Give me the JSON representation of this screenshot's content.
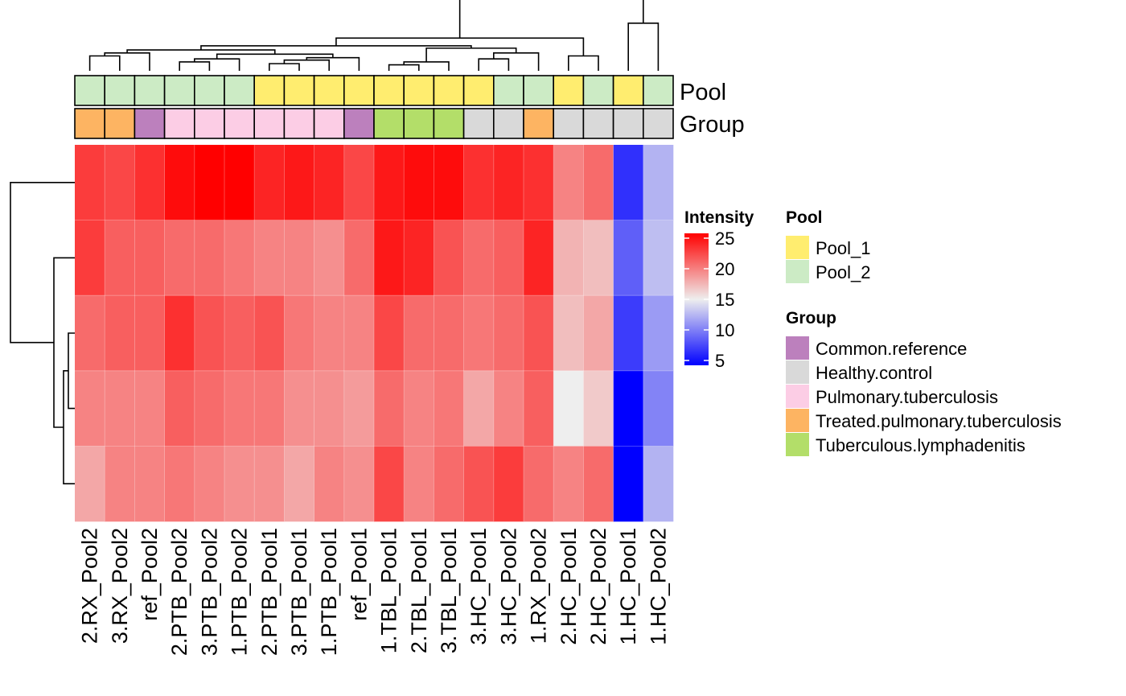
{
  "chart_data": {
    "type": "heatmap",
    "columns": [
      "2.RX_Pool2",
      "3.RX_Pool2",
      "ref_Pool2",
      "2.PTB_Pool2",
      "3.PTB_Pool2",
      "1.PTB_Pool2",
      "2.PTB_Pool1",
      "3.PTB_Pool1",
      "1.PTB_Pool1",
      "ref_Pool1",
      "1.TBL_Pool1",
      "2.TBL_Pool1",
      "3.TBL_Pool1",
      "3.HC_Pool1",
      "3.HC_Pool2",
      "1.RX_Pool2",
      "2.HC_Pool1",
      "2.HC_Pool2",
      "1.HC_Pool1",
      "1.HC_Pool2"
    ],
    "rows_count": 5,
    "values": [
      [
        22.5,
        22,
        23,
        24.5,
        25,
        25,
        23.5,
        24,
        23.5,
        22,
        24,
        24.5,
        24.5,
        23,
        23.5,
        23,
        19.5,
        20.5,
        7,
        12.5
      ],
      [
        22.5,
        21,
        21,
        20.5,
        20.5,
        20,
        19.5,
        19.5,
        19,
        20.5,
        24,
        23.5,
        21.5,
        20.5,
        21,
        23.5,
        17.5,
        17,
        9,
        13
      ],
      [
        20.5,
        21,
        21,
        23,
        21.5,
        21,
        21.5,
        20,
        19.5,
        19.5,
        22,
        20.5,
        20.5,
        20,
        20.5,
        21.5,
        17,
        18,
        7.5,
        11.5
      ],
      [
        19.5,
        19.5,
        19.5,
        21,
        20.5,
        20,
        20,
        19,
        19,
        18.5,
        20.5,
        19.5,
        20,
        18,
        19.5,
        21,
        15,
        16.5,
        5,
        10.5
      ],
      [
        18,
        19.5,
        19.5,
        20,
        19.5,
        19,
        19,
        18,
        19.5,
        19,
        22,
        19.5,
        20.5,
        21.5,
        22.5,
        20.5,
        19.5,
        20.5,
        5,
        12.5
      ]
    ],
    "annotations": {
      "Pool": [
        "Pool_2",
        "Pool_2",
        "Pool_2",
        "Pool_2",
        "Pool_2",
        "Pool_2",
        "Pool_1",
        "Pool_1",
        "Pool_1",
        "Pool_1",
        "Pool_1",
        "Pool_1",
        "Pool_1",
        "Pool_1",
        "Pool_2",
        "Pool_2",
        "Pool_1",
        "Pool_2",
        "Pool_1",
        "Pool_2"
      ],
      "Group": [
        "Treated.pulmonary.tuberculosis",
        "Treated.pulmonary.tuberculosis",
        "Common.reference",
        "Pulmonary.tuberculosis",
        "Pulmonary.tuberculosis",
        "Pulmonary.tuberculosis",
        "Pulmonary.tuberculosis",
        "Pulmonary.tuberculosis",
        "Pulmonary.tuberculosis",
        "Common.reference",
        "Tuberculous.lymphadenitis",
        "Tuberculous.lymphadenitis",
        "Tuberculous.lymphadenitis",
        "Healthy.control",
        "Healthy.control",
        "Treated.pulmonary.tuberculosis",
        "Healthy.control",
        "Healthy.control",
        "Healthy.control",
        "Healthy.control"
      ]
    },
    "annotation_labels": [
      "Pool",
      "Group"
    ],
    "colorbar": {
      "title": "Intensity",
      "ticks": [
        5,
        10,
        15,
        20,
        25
      ],
      "range": [
        5,
        25
      ],
      "stops": [
        {
          "value": 5,
          "color": "#0000FF"
        },
        {
          "value": 15,
          "color": "#EEEEEE"
        },
        {
          "value": 25,
          "color": "#FF0000"
        }
      ]
    },
    "legends": [
      {
        "title": "Pool",
        "items": [
          {
            "label": "Pool_1",
            "color": "#FFED6F"
          },
          {
            "label": "Pool_2",
            "color": "#CCEBC5"
          }
        ]
      },
      {
        "title": "Group",
        "items": [
          {
            "label": "Common.reference",
            "color": "#BC80BD"
          },
          {
            "label": "Healthy.control",
            "color": "#D9D9D9"
          },
          {
            "label": "Pulmonary.tuberculosis",
            "color": "#FCCDE5"
          },
          {
            "label": "Treated.pulmonary.tuberculosis",
            "color": "#FDB462"
          },
          {
            "label": "Tuberculous.lymphadenitis",
            "color": "#B3DE69"
          }
        ]
      }
    ],
    "column_dendrogram": [
      [
        0,
        1,
        0.25
      ],
      [
        2,
        20,
        0.3
      ],
      [
        3,
        4,
        0.15
      ],
      [
        5,
        22,
        0.2
      ],
      [
        6,
        7,
        0.12
      ],
      [
        8,
        24,
        0.18
      ],
      [
        9,
        25,
        0.22
      ],
      [
        23,
        26,
        0.28
      ],
      [
        21,
        27,
        0.35
      ],
      [
        10,
        11,
        0.1
      ],
      [
        12,
        29,
        0.15
      ],
      [
        13,
        14,
        0.2
      ],
      [
        15,
        31,
        0.3
      ],
      [
        30,
        32,
        0.38
      ],
      [
        28,
        33,
        0.42
      ],
      [
        16,
        17,
        0.25
      ],
      [
        34,
        35,
        0.55
      ],
      [
        18,
        19,
        0.8
      ],
      [
        36,
        37,
        2.0
      ]
    ],
    "row_dendrogram": [
      [
        3,
        2,
        0.2
      ],
      [
        5,
        4,
        0.35
      ],
      [
        6,
        1,
        0.65
      ],
      [
        0,
        7,
        2.0
      ]
    ]
  }
}
